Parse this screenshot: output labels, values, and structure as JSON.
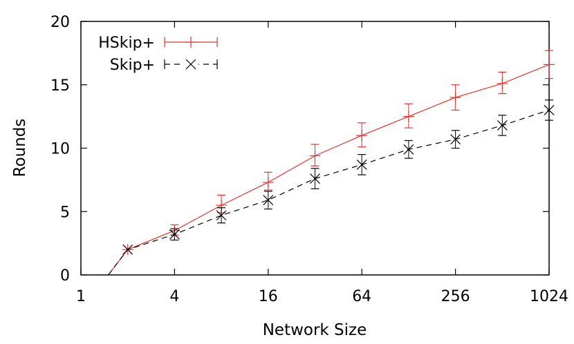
{
  "chart_data": {
    "type": "line",
    "xlabel": "Network Size",
    "ylabel": "Rounds",
    "x_scale": "log2",
    "xlim": [
      1,
      1024
    ],
    "ylim": [
      0,
      20
    ],
    "xticks": [
      1,
      4,
      16,
      64,
      256,
      1024
    ],
    "xtick_labels": [
      "1",
      "4",
      "16",
      "64",
      "256",
      "1024"
    ],
    "yticks": [
      0,
      5,
      10,
      15,
      20
    ],
    "ytick_labels": [
      "0",
      "5",
      "10",
      "15",
      "20"
    ],
    "grid": false,
    "legend_position": "top-left",
    "series": [
      {
        "name": "HSkip+",
        "color": "#e8312f",
        "dash": "solid",
        "marker": "plus",
        "x": [
          1.5,
          2,
          4,
          8,
          16,
          32,
          64,
          128,
          256,
          512,
          1024
        ],
        "y": [
          0,
          2.0,
          3.5,
          5.5,
          7.3,
          9.4,
          11.0,
          12.5,
          14.0,
          15.1,
          16.6
        ],
        "err_low": [
          null,
          0,
          0.35,
          0.6,
          0.6,
          0.8,
          0.9,
          0.9,
          1.0,
          0.8,
          1.1
        ],
        "err_high": [
          null,
          0,
          0.45,
          0.8,
          0.8,
          0.9,
          1.0,
          1.0,
          1.0,
          0.9,
          1.1
        ]
      },
      {
        "name": "Skip+",
        "color": "#000000",
        "dash": "dashed",
        "marker": "cross",
        "x": [
          1.5,
          2,
          4,
          8,
          16,
          32,
          64,
          128,
          256,
          512,
          1024
        ],
        "y": [
          0,
          2.0,
          3.2,
          4.7,
          5.9,
          7.6,
          8.7,
          9.9,
          10.7,
          11.8,
          13.0
        ],
        "err_low": [
          null,
          0,
          0.45,
          0.6,
          0.7,
          0.8,
          0.8,
          0.7,
          0.7,
          0.8,
          0.8
        ],
        "err_high": [
          null,
          0,
          0.45,
          0.6,
          0.7,
          0.8,
          0.8,
          0.7,
          0.7,
          0.8,
          0.8
        ]
      }
    ]
  }
}
